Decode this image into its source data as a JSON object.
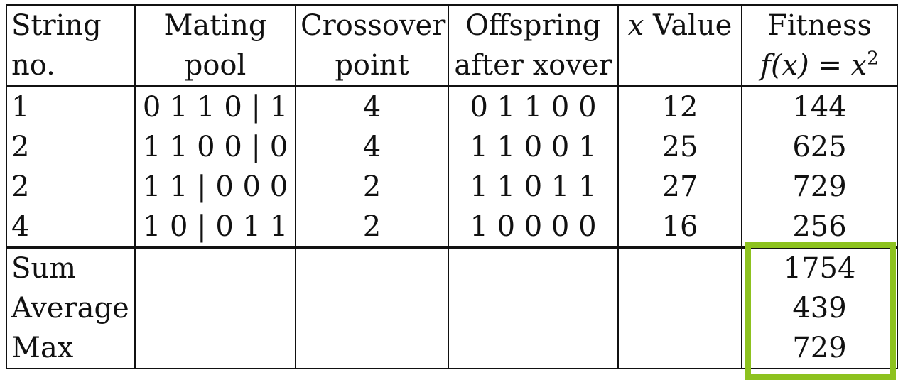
{
  "table": {
    "headers": [
      [
        "String",
        "no."
      ],
      [
        "Mating",
        "pool"
      ],
      [
        "Crossover",
        "point"
      ],
      [
        "Offspring",
        "after xover"
      ],
      [
        "x Value",
        ""
      ],
      [
        "Fitness",
        "f(x) = x²"
      ]
    ],
    "header_parts": {
      "x_var": "x",
      "x_value_word": " Value",
      "fitness_expr_lhs": "f(x)",
      "fitness_expr_eq": " = ",
      "fitness_expr_rhs": "x",
      "fitness_expr_exp": "2"
    },
    "rows": [
      {
        "string_no": "1",
        "mating_pool": "0 1 1 0 | 1",
        "crossover_point": "4",
        "offspring": "0 1 1 0 0",
        "x_value": "12",
        "fitness": "144"
      },
      {
        "string_no": "2",
        "mating_pool": "1 1 0 0 | 0",
        "crossover_point": "4",
        "offspring": "1 1 0 0 1",
        "x_value": "25",
        "fitness": "625"
      },
      {
        "string_no": "2",
        "mating_pool": "1 1 | 0 0 0",
        "crossover_point": "2",
        "offspring": "1 1 0 1 1",
        "x_value": "27",
        "fitness": "729"
      },
      {
        "string_no": "4",
        "mating_pool": "1 0 | 0 1 1",
        "crossover_point": "2",
        "offspring": "1 0 0 0 0",
        "x_value": "16",
        "fitness": "256"
      }
    ],
    "summary": [
      {
        "label": "Sum",
        "fitness": "1754"
      },
      {
        "label": "Average",
        "fitness": "439"
      },
      {
        "label": "Max",
        "fitness": "729"
      }
    ]
  },
  "highlight": {
    "color": "#8dc21f",
    "target": "summary fitness values"
  }
}
